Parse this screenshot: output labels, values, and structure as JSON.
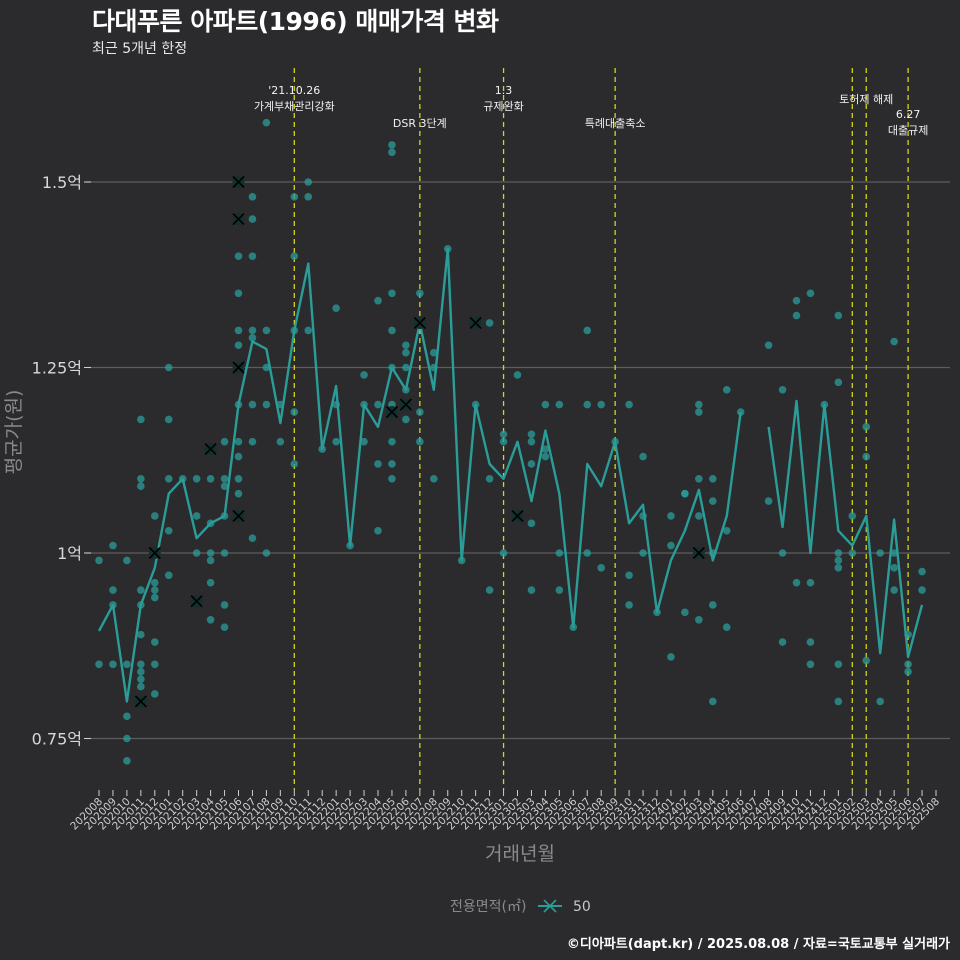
{
  "header": {
    "title": "다대푸른 아파트(1996) 매매가격 변화",
    "subtitle": "최근 5개년 한정"
  },
  "footer": {
    "credit": "©디아파트(dapt.kr) / 2025.08.08 / 자료=국토교통부 실거래가"
  },
  "colors": {
    "background": "#2b2b2d",
    "series": "#2a9d99",
    "event_line": "#d4d41a",
    "grid": "#5c5c5c"
  },
  "chart_data": {
    "type": "line",
    "title": "다대푸른 아파트(1996) 매매가격 변화",
    "xlabel": "거래년월",
    "ylabel": "평균가(원)",
    "ylim": [
      0.68,
      1.62
    ],
    "yticks": [
      {
        "value": 0.75,
        "label": "0.75억"
      },
      {
        "value": 1.0,
        "label": "1억"
      },
      {
        "value": 1.25,
        "label": "1.25억"
      },
      {
        "value": 1.5,
        "label": "1.5억"
      }
    ],
    "categories": [
      "202008",
      "202009",
      "202010",
      "202011",
      "202012",
      "202101",
      "202102",
      "202103",
      "202104",
      "202105",
      "202106",
      "202107",
      "202108",
      "202109",
      "202110",
      "202111",
      "202112",
      "202201",
      "202202",
      "202203",
      "202204",
      "202205",
      "202206",
      "202207",
      "202208",
      "202209",
      "202210",
      "202211",
      "202212",
      "202301",
      "202302",
      "202303",
      "202304",
      "202305",
      "202306",
      "202307",
      "202308",
      "202309",
      "202310",
      "202311",
      "202312",
      "202401",
      "202402",
      "202403",
      "202404",
      "202405",
      "202406",
      "202407",
      "202408",
      "202409",
      "202410",
      "202411",
      "202412",
      "202501",
      "202502",
      "202503",
      "202504",
      "202505",
      "202506",
      "202507",
      "202508"
    ],
    "legend": {
      "title": "전용면적(㎡)",
      "label": "50"
    },
    "series": [
      {
        "name": "50",
        "avg_values": [
          0.895,
          0.93,
          0.8,
          0.93,
          0.98,
          1.08,
          1.1,
          1.02,
          1.04,
          1.05,
          1.2,
          1.285,
          1.275,
          1.175,
          1.3,
          1.39,
          1.14,
          1.225,
          1.01,
          1.2,
          1.17,
          1.25,
          1.22,
          1.31,
          1.22,
          1.41,
          0.99,
          1.2,
          1.12,
          1.1,
          1.15,
          1.07,
          1.165,
          1.08,
          0.9,
          1.12,
          1.09,
          1.15,
          1.04,
          1.065,
          0.92,
          0.99,
          1.03,
          1.085,
          0.99,
          1.05,
          1.19,
          null,
          1.17,
          1.035,
          1.205,
          1.0,
          1.2,
          1.03,
          1.01,
          1.05,
          0.865,
          1.045,
          0.86,
          0.93,
          null
        ]
      }
    ],
    "transactions": [
      [
        0,
        0.99
      ],
      [
        0,
        0.85
      ],
      [
        1,
        1.01
      ],
      [
        1,
        0.95
      ],
      [
        1,
        0.85
      ],
      [
        1,
        0.93
      ],
      [
        2,
        0.75
      ],
      [
        2,
        0.72
      ],
      [
        2,
        0.78
      ],
      [
        2,
        0.85
      ],
      [
        2,
        0.99
      ],
      [
        3,
        0.8
      ],
      [
        3,
        0.82
      ],
      [
        3,
        0.84
      ],
      [
        3,
        0.89
      ],
      [
        3,
        0.93
      ],
      [
        3,
        1.09
      ],
      [
        3,
        1.1
      ],
      [
        3,
        1.18
      ],
      [
        3,
        0.85
      ],
      [
        3,
        0.95
      ],
      [
        3,
        0.83
      ],
      [
        4,
        1.0
      ],
      [
        4,
        1.05
      ],
      [
        4,
        0.95
      ],
      [
        4,
        0.88
      ],
      [
        4,
        0.85
      ],
      [
        4,
        0.81
      ],
      [
        4,
        0.94
      ],
      [
        4,
        0.96
      ],
      [
        4,
        1.0
      ],
      [
        5,
        1.1
      ],
      [
        5,
        1.25
      ],
      [
        5,
        1.03
      ],
      [
        5,
        0.97
      ],
      [
        5,
        1.18
      ],
      [
        6,
        1.1
      ],
      [
        7,
        0.935
      ],
      [
        7,
        1.1
      ],
      [
        7,
        1.05
      ],
      [
        7,
        1.0
      ],
      [
        8,
        1.14
      ],
      [
        8,
        0.91
      ],
      [
        8,
        0.96
      ],
      [
        8,
        1.04
      ],
      [
        8,
        1.1
      ],
      [
        8,
        1.0
      ],
      [
        8,
        0.99
      ],
      [
        9,
        0.9
      ],
      [
        9,
        0.93
      ],
      [
        9,
        1.0
      ],
      [
        9,
        1.05
      ],
      [
        9,
        1.1
      ],
      [
        9,
        1.15
      ],
      [
        9,
        1.09
      ],
      [
        10,
        1.5
      ],
      [
        10,
        1.45
      ],
      [
        10,
        1.25
      ],
      [
        10,
        1.05
      ],
      [
        10,
        1.4
      ],
      [
        10,
        1.35
      ],
      [
        10,
        1.3
      ],
      [
        10,
        1.28
      ],
      [
        10,
        1.15
      ],
      [
        10,
        1.1
      ],
      [
        10,
        1.2
      ],
      [
        10,
        1.13
      ],
      [
        10,
        1.08
      ],
      [
        11,
        1.48
      ],
      [
        11,
        1.45
      ],
      [
        11,
        1.4
      ],
      [
        11,
        1.3
      ],
      [
        11,
        1.29
      ],
      [
        11,
        1.2
      ],
      [
        11,
        1.15
      ],
      [
        11,
        1.02
      ],
      [
        12,
        1.58
      ],
      [
        12,
        1.3
      ],
      [
        12,
        1.25
      ],
      [
        12,
        1.2
      ],
      [
        12,
        1.0
      ],
      [
        13,
        1.2
      ],
      [
        13,
        1.15
      ],
      [
        14,
        1.48
      ],
      [
        14,
        1.4
      ],
      [
        14,
        1.3
      ],
      [
        14,
        1.19
      ],
      [
        14,
        1.12
      ],
      [
        15,
        1.5
      ],
      [
        15,
        1.48
      ],
      [
        15,
        1.3
      ],
      [
        16,
        1.14
      ],
      [
        17,
        1.33
      ],
      [
        17,
        1.2
      ],
      [
        17,
        1.15
      ],
      [
        18,
        1.01
      ],
      [
        19,
        1.24
      ],
      [
        19,
        1.2
      ],
      [
        19,
        1.15
      ],
      [
        20,
        1.34
      ],
      [
        20,
        1.2
      ],
      [
        20,
        1.12
      ],
      [
        20,
        1.03
      ],
      [
        21,
        1.54
      ],
      [
        21,
        1.55
      ],
      [
        21,
        1.35
      ],
      [
        21,
        1.3
      ],
      [
        21,
        1.25
      ],
      [
        21,
        1.2
      ],
      [
        21,
        1.19
      ],
      [
        21,
        1.15
      ],
      [
        21,
        1.12
      ],
      [
        21,
        1.1
      ],
      [
        22,
        1.2
      ],
      [
        22,
        1.27
      ],
      [
        22,
        1.25
      ],
      [
        22,
        1.22
      ],
      [
        22,
        1.18
      ],
      [
        22,
        1.28
      ],
      [
        23,
        1.31
      ],
      [
        23,
        1.35
      ],
      [
        23,
        1.19
      ],
      [
        23,
        1.15
      ],
      [
        24,
        1.27
      ],
      [
        24,
        1.25
      ],
      [
        24,
        1.1
      ],
      [
        25,
        1.41
      ],
      [
        26,
        0.99
      ],
      [
        27,
        1.31
      ],
      [
        27,
        1.2
      ],
      [
        27,
        1.31
      ],
      [
        28,
        1.31
      ],
      [
        28,
        1.1
      ],
      [
        28,
        0.95
      ],
      [
        29,
        1.16
      ],
      [
        29,
        1.15
      ],
      [
        29,
        1.0
      ],
      [
        30,
        1.05
      ],
      [
        30,
        1.24
      ],
      [
        31,
        1.16
      ],
      [
        31,
        1.15
      ],
      [
        31,
        1.12
      ],
      [
        31,
        1.04
      ],
      [
        31,
        0.95
      ],
      [
        32,
        1.2
      ],
      [
        32,
        1.14
      ],
      [
        32,
        1.13
      ],
      [
        33,
        1.2
      ],
      [
        33,
        1.0
      ],
      [
        33,
        0.95
      ],
      [
        34,
        0.9
      ],
      [
        35,
        1.3
      ],
      [
        35,
        1.2
      ],
      [
        35,
        1.0
      ],
      [
        36,
        1.2
      ],
      [
        36,
        0.98
      ],
      [
        37,
        1.15
      ],
      [
        38,
        1.2
      ],
      [
        38,
        0.97
      ],
      [
        38,
        0.93
      ],
      [
        39,
        1.13
      ],
      [
        39,
        1.05
      ],
      [
        39,
        1.0
      ],
      [
        40,
        0.92
      ],
      [
        41,
        1.05
      ],
      [
        41,
        1.01
      ],
      [
        41,
        0.86
      ],
      [
        42,
        1.08
      ],
      [
        42,
        1.08
      ],
      [
        42,
        0.92
      ],
      [
        43,
        1.2
      ],
      [
        43,
        1.19
      ],
      [
        43,
        1.1
      ],
      [
        43,
        1.05
      ],
      [
        43,
        1.0
      ],
      [
        43,
        0.91
      ],
      [
        44,
        1.1
      ],
      [
        44,
        1.07
      ],
      [
        44,
        1.0
      ],
      [
        44,
        0.93
      ],
      [
        44,
        0.8
      ],
      [
        45,
        1.22
      ],
      [
        45,
        1.03
      ],
      [
        45,
        0.9
      ],
      [
        46,
        1.19
      ],
      [
        48,
        1.28
      ],
      [
        48,
        1.07
      ],
      [
        49,
        1.22
      ],
      [
        49,
        1.0
      ],
      [
        49,
        0.88
      ],
      [
        50,
        1.34
      ],
      [
        50,
        1.32
      ],
      [
        50,
        0.96
      ],
      [
        51,
        1.35
      ],
      [
        51,
        0.96
      ],
      [
        51,
        0.85
      ],
      [
        51,
        0.88
      ],
      [
        52,
        1.2
      ],
      [
        53,
        1.32
      ],
      [
        53,
        1.23
      ],
      [
        53,
        1.0
      ],
      [
        53,
        0.99
      ],
      [
        53,
        0.98
      ],
      [
        53,
        0.85
      ],
      [
        53,
        0.8
      ],
      [
        54,
        1.05
      ],
      [
        54,
        1.0
      ],
      [
        55,
        1.17
      ],
      [
        55,
        1.13
      ],
      [
        55,
        0.855
      ],
      [
        56,
        1.0
      ],
      [
        56,
        0.8
      ],
      [
        57,
        1.285
      ],
      [
        57,
        1.0
      ],
      [
        57,
        0.98
      ],
      [
        57,
        0.95
      ],
      [
        58,
        0.89
      ],
      [
        58,
        0.85
      ],
      [
        58,
        0.84
      ],
      [
        59,
        0.975
      ],
      [
        59,
        0.95
      ]
    ],
    "cancelled": [
      [
        3,
        0.8
      ],
      [
        4,
        1.0
      ],
      [
        7,
        0.935
      ],
      [
        8,
        1.14
      ],
      [
        10,
        1.5
      ],
      [
        10,
        1.45
      ],
      [
        10,
        1.25
      ],
      [
        10,
        1.05
      ],
      [
        21,
        1.19
      ],
      [
        22,
        1.2
      ],
      [
        23,
        1.31
      ],
      [
        27,
        1.31
      ],
      [
        30,
        1.05
      ],
      [
        43,
        1.0
      ]
    ],
    "events": [
      {
        "x": 14,
        "lines": [
          "'21.10.26",
          "가계부채관리강화"
        ],
        "pos": "high"
      },
      {
        "x": 23,
        "lines": [
          "DSR 3단계"
        ],
        "pos": "low"
      },
      {
        "x": 29,
        "lines": [
          "1.3",
          "규제완화"
        ],
        "pos": "high"
      },
      {
        "x": 37,
        "lines": [
          "특례대출축소"
        ],
        "pos": "low"
      },
      {
        "x": 54,
        "lines": [],
        "pos": "none"
      },
      {
        "x": 55,
        "lines": [
          "토허제 해제"
        ],
        "pos": "mid"
      },
      {
        "x": 58,
        "lines": [
          "6.27",
          "대출규제"
        ],
        "pos": "mid2"
      }
    ]
  }
}
